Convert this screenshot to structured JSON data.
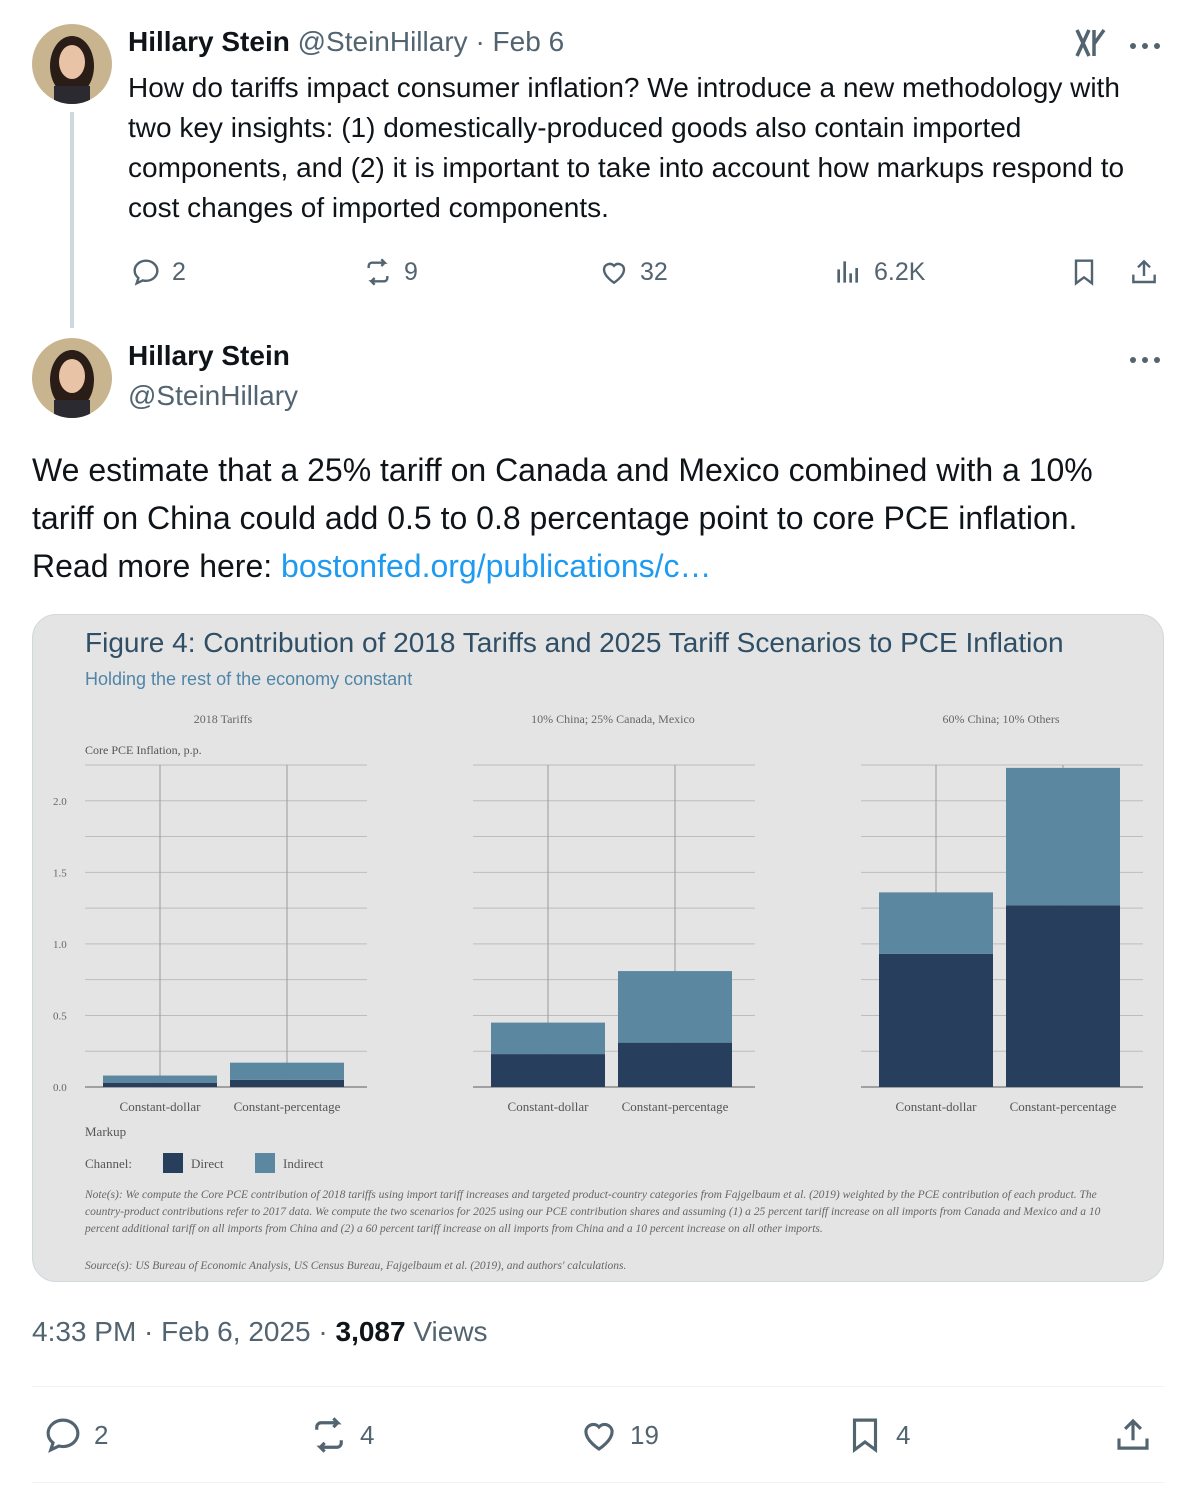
{
  "tweet1": {
    "author_name": "Hillary Stein",
    "handle": "@SteinHillary",
    "date": "· Feb 6",
    "text": "How do tariffs impact consumer inflation? We introduce a new methodology with two key insights: (1) domestically-produced goods also contain imported components, and (2) it is important to take into account how markups respond to cost changes of imported components.",
    "replies": "2",
    "reposts": "9",
    "likes": "32",
    "views": "6.2K"
  },
  "tweet2": {
    "author_name": "Hillary Stein",
    "handle": "@SteinHillary",
    "text_before_link": "We estimate that a 25% tariff on Canada and Mexico combined with a 10% tariff on China could add 0.5 to 0.8 percentage point to core PCE inflation. Read more here: ",
    "link_text": "bostonfed.org/publications/c…",
    "timestamp": "4:33 PM · Feb 6, 2025 · ",
    "views_count": "3,087",
    "views_label": " Views",
    "replies": "2",
    "reposts": "4",
    "likes": "19",
    "bookmarks": "4"
  },
  "icons": [
    "grok-icon",
    "more-icon",
    "reply-icon",
    "repost-icon",
    "like-icon",
    "views-icon",
    "bookmark-icon",
    "share-icon"
  ],
  "colors": {
    "link": "#1d9bf0",
    "muted": "#536471",
    "direct": "#273f5c",
    "indirect": "#5b87a1",
    "chart_title": "#2f4f66",
    "chart_subtitle": "#4f86a8"
  },
  "chart_data": {
    "type": "bar",
    "stacked": true,
    "title": "Figure 4: Contribution of 2018 Tariffs and 2025 Tariff Scenarios to PCE Inflation",
    "subtitle": "Holding the rest of the economy constant",
    "ylabel": "Core PCE Inflation, p.p.",
    "ylim": [
      0,
      2.25
    ],
    "yticks": [
      "0.0",
      "0.5",
      "1.0",
      "1.5",
      "2.0"
    ],
    "xlabel": "Markup",
    "grid": true,
    "legend": {
      "title": "Channel:",
      "entries": [
        "Direct",
        "Indirect"
      ],
      "placement": "bottom-left"
    },
    "categories": [
      "Constant-dollar",
      "Constant-percentage"
    ],
    "panels": [
      {
        "title": "2018 Tariffs",
        "series": [
          {
            "name": "Direct",
            "values": [
              0.03,
              0.05
            ]
          },
          {
            "name": "Indirect",
            "values": [
              0.05,
              0.12
            ]
          }
        ]
      },
      {
        "title": "10% China; 25% Canada, Mexico",
        "series": [
          {
            "name": "Direct",
            "values": [
              0.23,
              0.31
            ]
          },
          {
            "name": "Indirect",
            "values": [
              0.22,
              0.5
            ]
          }
        ]
      },
      {
        "title": "60% China; 10% Others",
        "series": [
          {
            "name": "Direct",
            "values": [
              0.93,
              1.27
            ]
          },
          {
            "name": "Indirect",
            "values": [
              0.43,
              0.96
            ]
          }
        ]
      }
    ],
    "note": "Note(s): We compute the Core PCE contribution of 2018 tariffs using import tariff increases and targeted product-country categories from Fajgelbaum et al. (2019) weighted by the PCE contribution of each product. The country-product contributions refer to 2017 data. We compute the two scenarios for 2025 using our PCE contribution shares and assuming (1) a 25 percent tariff increase on all imports from Canada and Mexico and a 10 percent additional tariff on all imports from China and (2) a 60 percent tariff increase on all imports from China and a 10 percent increase on all other imports.",
    "source": "Source(s): US Bureau of Economic Analysis, US Census Bureau, Fajgelbaum et al. (2019), and authors' calculations."
  }
}
